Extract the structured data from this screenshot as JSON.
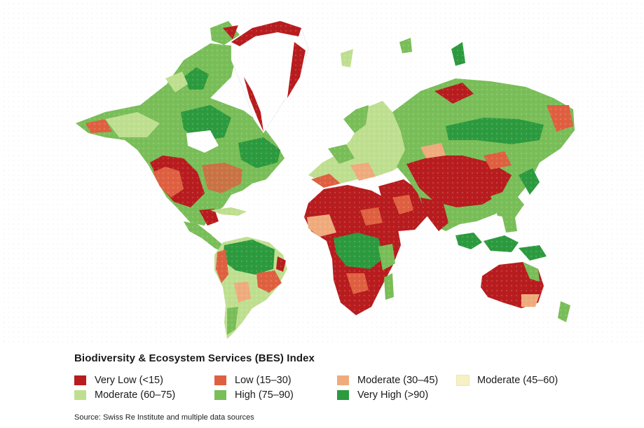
{
  "legend": {
    "title": "Biodiversity & Ecosystem Services (BES) Index",
    "items": [
      {
        "label": "Very Low (<15)",
        "color": "#b81c1e"
      },
      {
        "label": "Low (15–30)",
        "color": "#df6040"
      },
      {
        "label": "Moderate (30–45)",
        "color": "#efab7c"
      },
      {
        "label": "Moderate (45–60)",
        "color": "#f6f1c4"
      },
      {
        "label": "Moderate (60–75)",
        "color": "#bfdf90"
      },
      {
        "label": "High (75–90)",
        "color": "#79be58"
      },
      {
        "label": "Very High (>90)",
        "color": "#2c9a3e"
      }
    ]
  },
  "source": "Source: Swiss Re Institute and multiple data sources",
  "map": {
    "projection": "mercator-style world map",
    "regions": [
      {
        "id": "north-america-boreal",
        "level": "high"
      },
      {
        "id": "north-america-west",
        "level": "very-low"
      },
      {
        "id": "north-america-east",
        "level": "high"
      },
      {
        "id": "greenland",
        "level": "very-low"
      },
      {
        "id": "amazon",
        "level": "very-high"
      },
      {
        "id": "south-america-south",
        "level": "moderate-60-75"
      },
      {
        "id": "sahara-arabia",
        "level": "very-low"
      },
      {
        "id": "central-africa",
        "level": "very-high"
      },
      {
        "id": "southern-africa",
        "level": "very-low"
      },
      {
        "id": "europe",
        "level": "moderate-60-75"
      },
      {
        "id": "siberia",
        "level": "high"
      },
      {
        "id": "central-asia",
        "level": "very-low"
      },
      {
        "id": "south-asia",
        "level": "very-low"
      },
      {
        "id": "southeast-asia",
        "level": "very-high"
      },
      {
        "id": "australia",
        "level": "very-low"
      }
    ]
  }
}
